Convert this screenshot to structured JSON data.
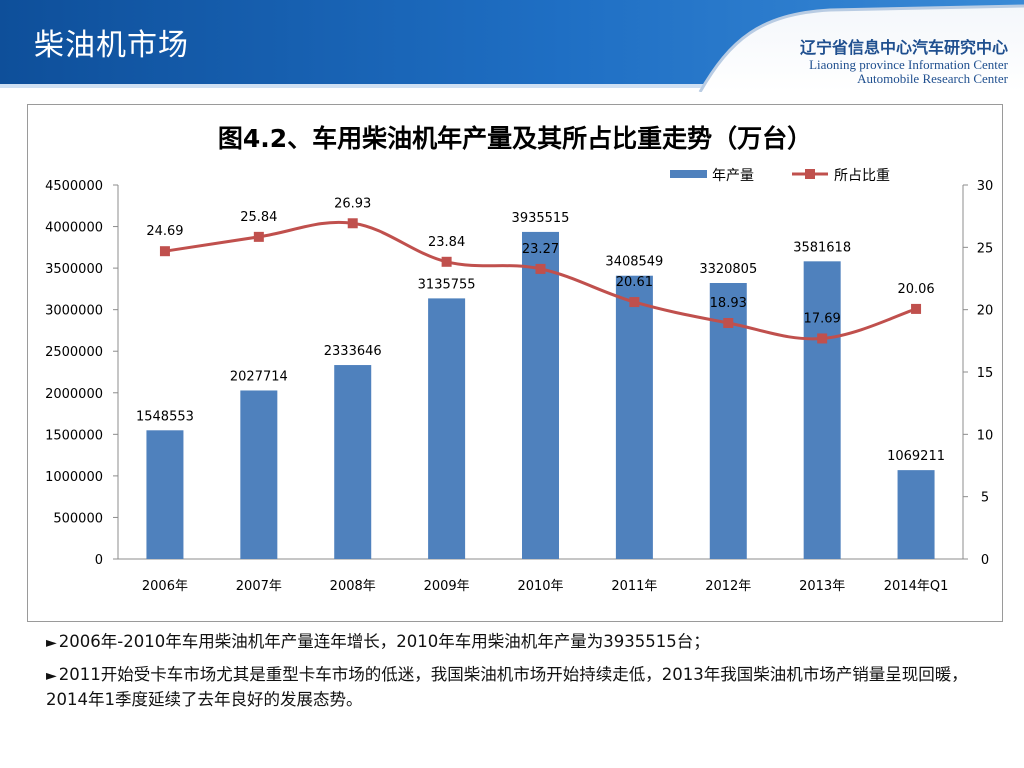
{
  "slide": {
    "title": "柴油机市场"
  },
  "logo": {
    "cn_prefix": "辽宁省信息中心",
    "cn_accent": "汽车研究中心",
    "en_line1": "Liaoning province Information Center",
    "en_line2": "Automobile Research Center"
  },
  "colors": {
    "header_blue": "#1a64b4",
    "bar_blue": "#4f81bd",
    "line_red": "#c0504d"
  },
  "chart_data": {
    "type": "bar",
    "title": "图4.2、车用柴油机年产量及其所占比重走势（万台）",
    "categories": [
      "2006年",
      "2007年",
      "2008年",
      "2009年",
      "2010年",
      "2011年",
      "2012年",
      "2013年",
      "2014年Q1"
    ],
    "series": [
      {
        "name": "年产量",
        "type": "bar",
        "axis": "left",
        "values": [
          1548553,
          2027714,
          2333646,
          3135755,
          3935515,
          3408549,
          3320805,
          3581618,
          1069211
        ]
      },
      {
        "name": "所占比重",
        "type": "line",
        "axis": "right",
        "values": [
          24.69,
          25.84,
          26.93,
          23.84,
          23.27,
          20.61,
          18.93,
          17.69,
          20.06
        ]
      }
    ],
    "ylim_left": [
      0,
      4500000
    ],
    "yticks_left": [
      0,
      500000,
      1000000,
      1500000,
      2000000,
      2500000,
      3000000,
      3500000,
      4000000,
      4500000
    ],
    "ylim_right": [
      0,
      30
    ],
    "yticks_right": [
      0,
      5,
      10,
      15,
      20,
      25,
      30
    ],
    "grid": false,
    "legend_position": "top-right"
  },
  "bullets": [
    "2006年-2010年车用柴油机年产量连年增长，2010年车用柴油机年产量为3935515台；",
    "2011开始受卡车市场尤其是重型卡车市场的低迷，我国柴油机市场开始持续走低，2013年我国柴油机市场产销量呈现回暖，2014年1季度延续了去年良好的发展态势。"
  ],
  "bullet_marker": "►"
}
